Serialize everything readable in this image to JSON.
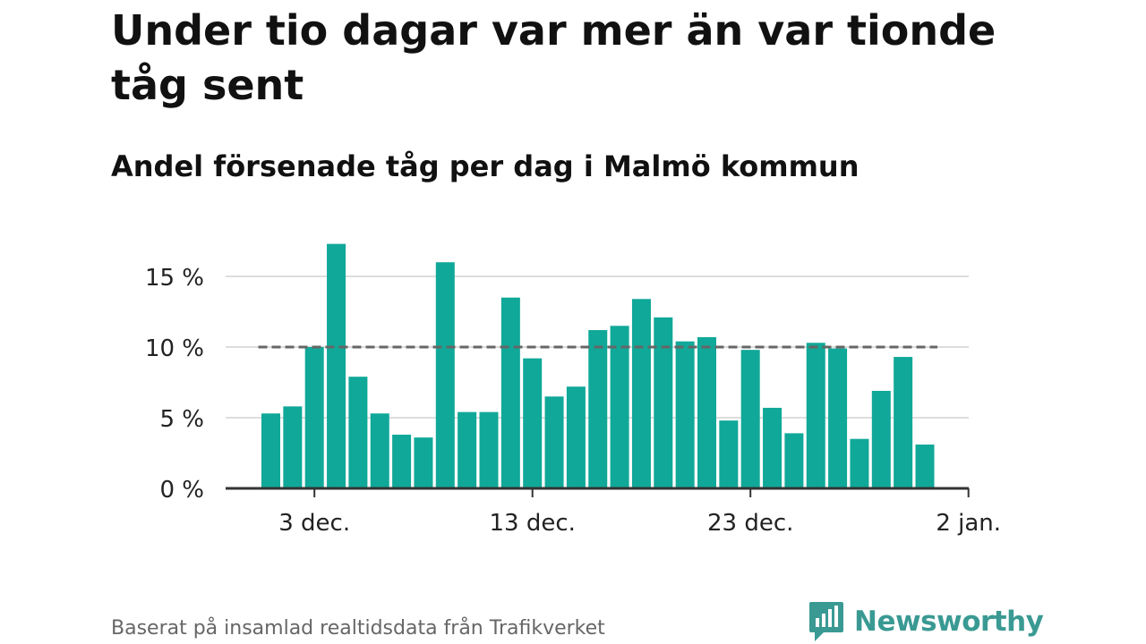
{
  "header": {
    "title": "Under tio dagar var mer än var tionde tåg sent",
    "subtitle": "Andel försenade tåg per dag i Malmö kommun"
  },
  "footer": {
    "source": "Baserat på insamlad realtidsdata från Trafikverket",
    "brand": "Newsworthy",
    "brand_icon": "newsworthy-logo-icon"
  },
  "colors": {
    "bar": "#10a898",
    "reference_line": "#666666",
    "grid": "#dddddd",
    "axis": "#333333",
    "brand": "#3a9a93"
  },
  "chart_data": {
    "type": "bar",
    "x_start": "2021-12-01",
    "x": [
      "2021-12-01",
      "2021-12-02",
      "2021-12-03",
      "2021-12-04",
      "2021-12-05",
      "2021-12-06",
      "2021-12-07",
      "2021-12-08",
      "2021-12-09",
      "2021-12-10",
      "2021-12-11",
      "2021-12-12",
      "2021-12-13",
      "2021-12-14",
      "2021-12-15",
      "2021-12-16",
      "2021-12-17",
      "2021-12-18",
      "2021-12-19",
      "2021-12-20",
      "2021-12-21",
      "2021-12-22",
      "2021-12-23",
      "2021-12-24",
      "2021-12-25",
      "2021-12-26",
      "2021-12-27",
      "2021-12-28",
      "2021-12-29",
      "2021-12-30",
      "2021-12-31"
    ],
    "values": [
      5.3,
      5.8,
      10.0,
      17.3,
      7.9,
      5.3,
      3.8,
      3.6,
      16.0,
      5.4,
      5.4,
      13.5,
      9.2,
      6.5,
      7.2,
      11.2,
      11.5,
      13.4,
      12.1,
      10.4,
      10.7,
      4.8,
      9.8,
      5.7,
      3.9,
      10.3,
      9.9,
      3.5,
      6.9,
      9.3,
      3.1
    ],
    "reference_line": 10,
    "ylim": [
      0,
      18
    ],
    "y_ticks": [
      {
        "value": 0,
        "label": "0 %"
      },
      {
        "value": 5,
        "label": "5 %"
      },
      {
        "value": 10,
        "label": "10 %"
      },
      {
        "value": 15,
        "label": "15 %"
      }
    ],
    "x_ticks": [
      {
        "date": "2021-12-03",
        "label": "3 dec."
      },
      {
        "date": "2021-12-13",
        "label": "13 dec."
      },
      {
        "date": "2021-12-23",
        "label": "23 dec."
      },
      {
        "date": "2022-01-02",
        "label": "2 jan."
      }
    ],
    "grid": true,
    "xlabel": "",
    "ylabel": ""
  }
}
